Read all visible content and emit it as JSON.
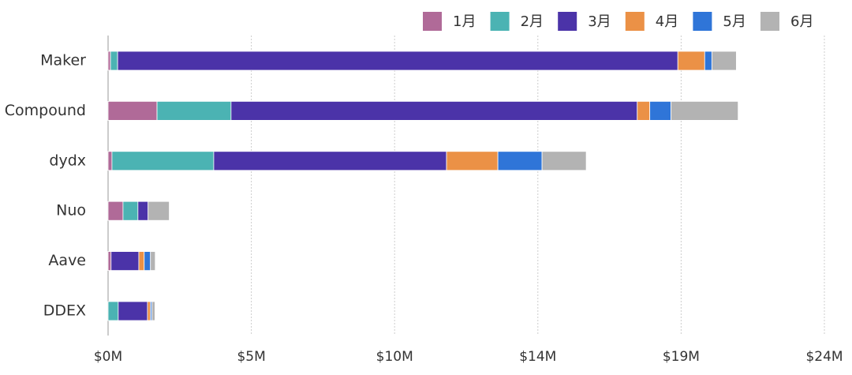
{
  "chart_data": {
    "type": "stacked-bar-horizontal",
    "categories": [
      "Maker",
      "Compound",
      "dydx",
      "Nuo",
      "Aave",
      "DDEX"
    ],
    "series": [
      {
        "name": "1月",
        "color": "#b06a98",
        "values": [
          0.08,
          1.64,
          0.13,
          0.5,
          0.1,
          0
        ]
      },
      {
        "name": "2月",
        "color": "#4bb3b3",
        "values": [
          0.24,
          2.48,
          3.41,
          0.5,
          0,
          0.34
        ]
      },
      {
        "name": "3月",
        "color": "#4b33a8",
        "values": [
          18.77,
          13.61,
          7.8,
          0.34,
          0.93,
          0.98
        ]
      },
      {
        "name": "4月",
        "color": "#eb9146",
        "values": [
          0.9,
          0.42,
          1.72,
          0,
          0.18,
          0.1
        ]
      },
      {
        "name": "5月",
        "color": "#2f75d8",
        "values": [
          0.24,
          0.71,
          1.48,
          0,
          0.21,
          0.05
        ]
      },
      {
        "name": "6月",
        "color": "#b3b3b3",
        "values": [
          0.82,
          2.25,
          1.48,
          0.71,
          0.16,
          0.1
        ]
      }
    ],
    "xlim": [
      0,
      24
    ],
    "xticks": [
      {
        "value": 0,
        "label": "$0M"
      },
      {
        "value": 4.8,
        "label": "$5M"
      },
      {
        "value": 9.6,
        "label": "$10M"
      },
      {
        "value": 14.4,
        "label": "$14M"
      },
      {
        "value": 19.2,
        "label": "$19M"
      },
      {
        "value": 24,
        "label": "$24M"
      }
    ],
    "grid": true,
    "legend": "top-right"
  }
}
